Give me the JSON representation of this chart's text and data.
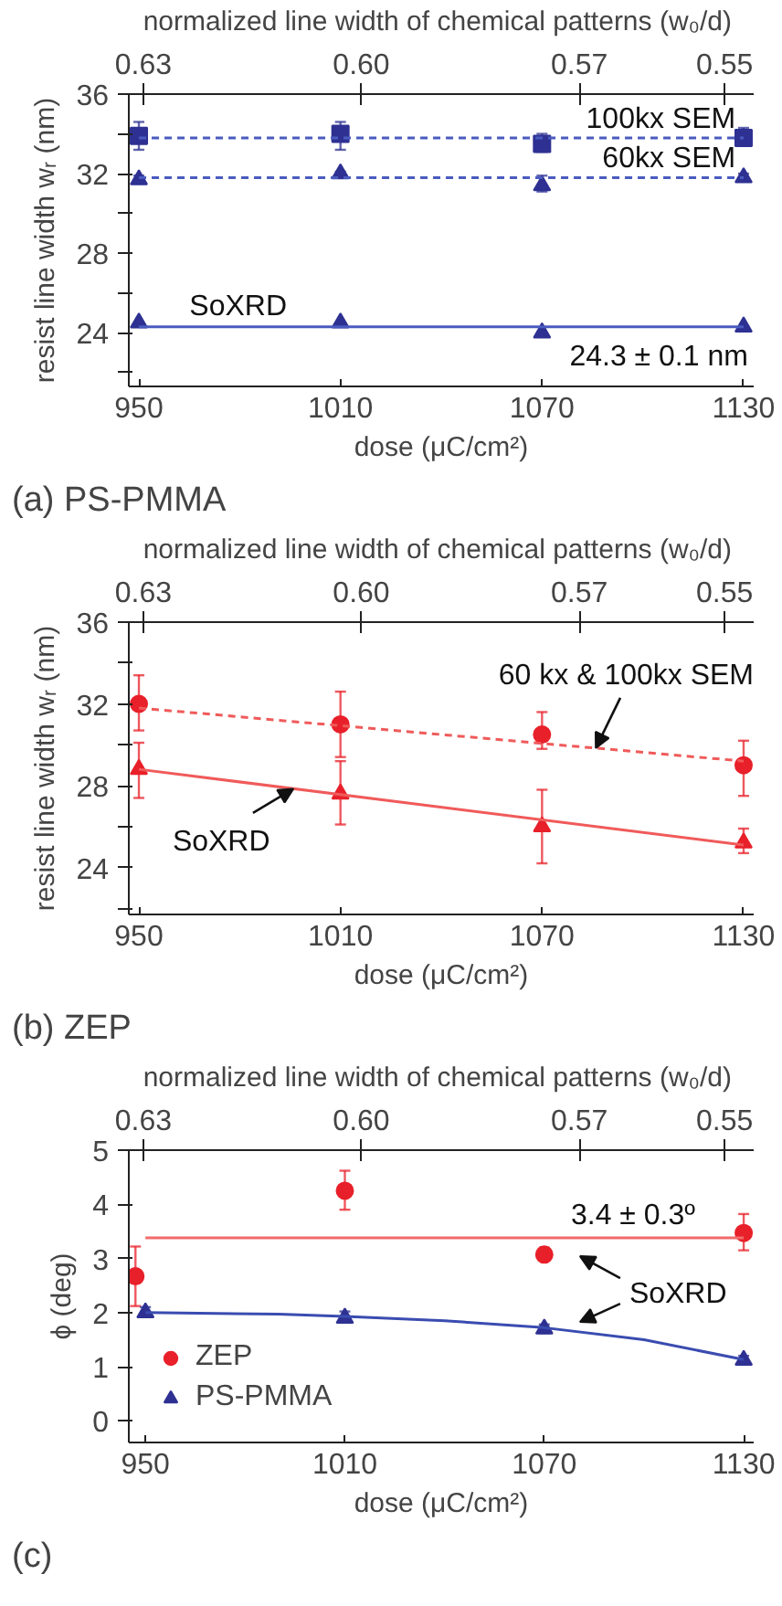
{
  "chart_data": [
    {
      "type": "scatter",
      "title": "(a) PS-PMMA",
      "xlabel": "dose (μC/cm²)",
      "ylabel": "resist line width wᵣ (nm)",
      "x2label": "normalized line width of chemical patterns  (w₀/d)",
      "x": [
        950,
        1010,
        1070,
        1130
      ],
      "xlim": [
        947,
        1133
      ],
      "xticks": [
        950,
        1010,
        1070,
        1130
      ],
      "x2lim": [
        0.632,
        0.546
      ],
      "x2ticks": [
        {
          "value": 0.63,
          "label": "0.63"
        },
        {
          "value": 0.6,
          "label": "0.60"
        },
        {
          "value": 0.57,
          "label": "0.57"
        },
        {
          "value": 0.55,
          "label": "0.55"
        }
      ],
      "ylim": [
        21.3,
        36
      ],
      "yticks": [
        {
          "value": 22,
          "label": null
        },
        24,
        {
          "value": 26,
          "label": null
        },
        28,
        {
          "value": 30,
          "label": null
        },
        32,
        {
          "value": 34,
          "label": null
        },
        36
      ],
      "grid": false,
      "legend": false,
      "series": [
        {
          "marker": "square",
          "color": "#2e3192",
          "values": [
            33.9,
            34.0,
            33.5,
            33.8
          ],
          "errors": [
            [
              33.2,
              34.6
            ],
            [
              33.2,
              34.6
            ],
            [
              33.1,
              34.0
            ],
            [
              33.4,
              34.3
            ]
          ]
        },
        {
          "type": "line",
          "line_style": "dashed",
          "color": "#4a5bbf",
          "x": [
            950,
            1130
          ],
          "values": [
            33.8,
            33.8
          ]
        },
        {
          "marker": "triangle",
          "color": "#2e3192",
          "values": [
            31.7,
            32.0,
            31.4,
            31.8
          ],
          "errors": [
            [
              31.5,
              31.9
            ],
            [
              31.8,
              32.1
            ],
            [
              31.1,
              31.9
            ],
            [
              31.6,
              32.0
            ]
          ]
        },
        {
          "type": "line",
          "line_style": "dashed",
          "color": "#4a5bbf",
          "x": [
            950,
            1130
          ],
          "values": [
            31.8,
            31.8
          ]
        },
        {
          "marker": "triangle",
          "color": "#2e3192",
          "values": [
            24.5,
            24.5,
            24.0,
            24.3
          ]
        },
        {
          "type": "line",
          "line_style": "solid",
          "color": "#4a5bbf",
          "x": [
            950,
            1130
          ],
          "values": [
            24.3,
            24.3
          ]
        }
      ],
      "annotations": [
        "100kx SEM",
        "60kx SEM",
        "SoXRD",
        "24.3 ± 0.1 nm"
      ]
    },
    {
      "type": "scatter",
      "title": "(b) ZEP",
      "xlabel": "dose (μC/cm²)",
      "ylabel": "resist line width wᵣ (nm)",
      "x2label": "normalized line width of chemical patterns  (w₀/d)",
      "x": [
        950,
        1010,
        1070,
        1130
      ],
      "xlim": [
        947,
        1133
      ],
      "xticks": [
        950,
        1010,
        1070,
        1130
      ],
      "x2lim": [
        0.632,
        0.546
      ],
      "x2ticks": [
        {
          "value": 0.63,
          "label": "0.63"
        },
        {
          "value": 0.6,
          "label": "0.60"
        },
        {
          "value": 0.57,
          "label": "0.57"
        },
        {
          "value": 0.55,
          "label": "0.55"
        }
      ],
      "ylim": [
        21.7,
        36
      ],
      "yticks": [
        {
          "value": 22,
          "label": null
        },
        24,
        {
          "value": 26,
          "label": null
        },
        28,
        {
          "value": 30,
          "label": null
        },
        32,
        {
          "value": 34,
          "label": null
        },
        36
      ],
      "grid": false,
      "legend": false,
      "series": [
        {
          "marker": "circle",
          "color": "#e8202a",
          "values": [
            32.0,
            31.0,
            30.5,
            29.0
          ],
          "errors": [
            [
              30.7,
              33.4
            ],
            [
              29.4,
              32.6
            ],
            [
              29.8,
              31.6
            ],
            [
              27.5,
              30.2
            ]
          ]
        },
        {
          "type": "line",
          "line_style": "dashed",
          "color": "#f05a5a",
          "x": [
            950,
            1130
          ],
          "values": [
            31.8,
            29.2
          ]
        },
        {
          "marker": "triangle",
          "color": "#e8202a",
          "values": [
            28.8,
            27.6,
            26.0,
            25.2
          ],
          "errors": [
            [
              27.4,
              30.1
            ],
            [
              26.1,
              29.2
            ],
            [
              24.2,
              27.8
            ],
            [
              24.7,
              25.9
            ]
          ]
        },
        {
          "type": "line",
          "line_style": "solid",
          "color": "#f05a5a",
          "x": [
            950,
            1130
          ],
          "values": [
            28.8,
            25.1
          ]
        }
      ],
      "annotations": [
        {
          "text": "60 kx & 100kx SEM",
          "x": 1086,
          "y": 29.84
        },
        {
          "text": "SoXRD",
          "x": 996,
          "y": 27.85
        }
      ]
    },
    {
      "type": "scatter",
      "title": "(c)",
      "xlabel": "dose (μC/cm²)",
      "ylabel": "ϕ (deg)",
      "x2label": "normalized line width of chemical patterns  (w₀/d)",
      "x": [
        950,
        1010,
        1070,
        1130
      ],
      "xlim": [
        945,
        1133
      ],
      "xticks": [
        950,
        1010,
        1070,
        1130
      ],
      "x2lim": [
        0.632,
        0.546
      ],
      "x2ticks": [
        {
          "value": 0.63,
          "label": "0.63"
        },
        {
          "value": 0.6,
          "label": "0.60"
        },
        {
          "value": 0.57,
          "label": "0.57"
        },
        {
          "value": 0.55,
          "label": "0.55"
        }
      ],
      "ylim": [
        -0.4,
        5
      ],
      "yticks": [
        0,
        1,
        2,
        3,
        4,
        5
      ],
      "grid": false,
      "legend": "bottom left",
      "series": [
        {
          "name": "ZEP",
          "marker": "circle",
          "color": "#e8202a",
          "x": [
            947,
            1010,
            1070,
            1130
          ],
          "values": [
            2.67,
            4.25,
            3.07,
            3.47
          ],
          "errors": [
            [
              2.12,
              3.22
            ],
            [
              3.9,
              4.62
            ],
            [
              2.98,
              3.2
            ],
            [
              3.15,
              3.82
            ]
          ]
        },
        {
          "type": "line",
          "line_style": "solid",
          "color": "#f26b6b",
          "x": [
            950,
            1130
          ],
          "values": [
            3.38,
            3.38
          ]
        },
        {
          "name": "PS-PMMA",
          "marker": "triangle",
          "color": "#2e3192",
          "values": [
            2.0,
            1.9,
            1.7,
            1.12
          ],
          "errors": [
            [
              1.93,
              2.1
            ],
            [
              1.82,
              2.02
            ],
            [
              1.62,
              1.78
            ],
            [
              1.05,
              1.2
            ]
          ]
        },
        {
          "type": "line",
          "line_style": "solid",
          "color": "#3a4cb0",
          "x": [
            950,
            990,
            1010,
            1040,
            1070,
            1100,
            1130
          ],
          "values": [
            2.0,
            1.97,
            1.93,
            1.85,
            1.72,
            1.5,
            1.13
          ]
        }
      ],
      "annotations": [
        "3.4 ± 0.3º",
        "SoXRD"
      ]
    }
  ]
}
